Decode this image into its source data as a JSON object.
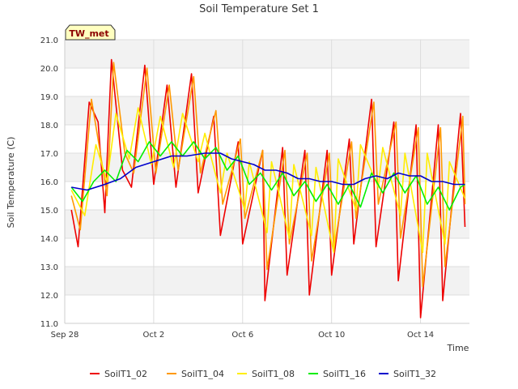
{
  "chart_data": {
    "type": "line",
    "title": "Soil Temperature Set 1",
    "xlabel": "Time",
    "ylabel": "Soil Temperature (C)",
    "ylim": [
      11.0,
      21.0
    ],
    "yticks": [
      11.0,
      12.0,
      13.0,
      14.0,
      15.0,
      16.0,
      17.0,
      18.0,
      19.0,
      20.0,
      21.0
    ],
    "ytick_labels": [
      "11.0",
      "12.0",
      "13.0",
      "14.0",
      "15.0",
      "16.0",
      "17.0",
      "18.0",
      "19.0",
      "20.0",
      "21.0"
    ],
    "xlim_days": [
      0,
      18.2
    ],
    "xticks": [
      0,
      4,
      8,
      12,
      16
    ],
    "xtick_labels": [
      "Sep 28",
      "Oct 2",
      "Oct 6",
      "Oct 10",
      "Oct 14"
    ],
    "grid": true,
    "legend_position": "bottom",
    "badge": "TW_met",
    "badge_color": "#ffffc0",
    "series": [
      {
        "name": "SoilT1_02",
        "color": "#ee0000",
        "x": [
          0.3,
          0.6,
          1.1,
          1.5,
          1.8,
          2.1,
          2.6,
          3.0,
          3.6,
          4.0,
          4.6,
          5.0,
          5.7,
          6.0,
          6.7,
          7.0,
          7.8,
          8.0,
          8.9,
          9.0,
          9.8,
          10.0,
          10.8,
          11.0,
          11.8,
          12.0,
          12.8,
          13.0,
          13.8,
          14.0,
          14.8,
          15.0,
          15.8,
          16.0,
          16.8,
          17.0,
          17.8,
          18.0
        ],
        "y": [
          15.0,
          13.7,
          18.8,
          18.1,
          14.9,
          20.3,
          16.4,
          15.8,
          20.1,
          15.9,
          19.4,
          15.8,
          19.8,
          15.6,
          18.3,
          14.1,
          17.4,
          13.8,
          17.1,
          11.8,
          17.2,
          12.7,
          17.1,
          12.0,
          17.1,
          12.7,
          17.5,
          13.8,
          18.9,
          13.7,
          18.1,
          12.5,
          18.0,
          11.2,
          18.0,
          11.8,
          18.4,
          14.4
        ]
      },
      {
        "name": "SoilT1_04",
        "color": "#ff9900",
        "x": [
          0.3,
          0.7,
          1.2,
          1.6,
          1.9,
          2.2,
          2.7,
          3.1,
          3.7,
          4.1,
          4.7,
          5.1,
          5.8,
          6.1,
          6.8,
          7.1,
          7.9,
          8.1,
          8.9,
          9.1,
          9.9,
          10.1,
          10.9,
          11.1,
          11.9,
          12.1,
          12.9,
          13.1,
          13.9,
          14.1,
          14.9,
          15.1,
          15.9,
          16.1,
          16.9,
          17.1,
          17.9,
          18.0
        ],
        "y": [
          15.5,
          14.3,
          18.9,
          17.0,
          15.5,
          20.2,
          17.0,
          16.3,
          20.0,
          16.3,
          19.4,
          16.4,
          19.7,
          16.3,
          18.5,
          15.2,
          17.5,
          14.7,
          17.1,
          12.9,
          17.1,
          13.8,
          17.0,
          13.2,
          17.0,
          13.6,
          17.4,
          14.7,
          18.8,
          15.2,
          18.1,
          14.0,
          17.9,
          12.3,
          17.9,
          13.0,
          18.3,
          15.2
        ]
      },
      {
        "name": "SoilT1_08",
        "color": "#ffee00",
        "x": [
          0.3,
          0.9,
          1.4,
          1.9,
          2.3,
          2.9,
          3.3,
          3.9,
          4.3,
          4.9,
          5.3,
          6.0,
          6.3,
          7.0,
          7.3,
          8.1,
          8.3,
          9.1,
          9.3,
          10.1,
          10.3,
          11.1,
          11.3,
          12.1,
          12.3,
          13.1,
          13.3,
          14.1,
          14.3,
          15.1,
          15.3,
          16.1,
          16.3,
          17.1,
          17.3,
          18.0
        ],
        "y": [
          15.7,
          14.8,
          17.3,
          16.0,
          18.4,
          16.8,
          18.6,
          16.6,
          18.3,
          16.5,
          18.4,
          16.7,
          17.7,
          15.6,
          17.0,
          15.0,
          16.7,
          14.2,
          16.7,
          14.0,
          16.6,
          14.1,
          16.5,
          13.5,
          16.8,
          15.0,
          17.3,
          15.8,
          17.2,
          14.8,
          17.0,
          13.5,
          17.0,
          13.8,
          16.7,
          15.4
        ]
      },
      {
        "name": "SoilT1_16",
        "color": "#00ee00",
        "x": [
          0.3,
          0.8,
          1.3,
          1.8,
          2.3,
          2.8,
          3.3,
          3.8,
          4.3,
          4.8,
          5.3,
          5.8,
          6.3,
          6.8,
          7.3,
          7.8,
          8.3,
          8.8,
          9.3,
          9.8,
          10.3,
          10.8,
          11.3,
          11.8,
          12.3,
          12.8,
          13.3,
          13.8,
          14.3,
          14.8,
          15.3,
          15.8,
          16.3,
          16.8,
          17.3,
          17.8,
          18.0
        ],
        "y": [
          15.8,
          15.3,
          16.0,
          16.4,
          16.0,
          17.1,
          16.7,
          17.4,
          16.9,
          17.4,
          16.9,
          17.4,
          16.8,
          17.2,
          16.4,
          16.9,
          15.9,
          16.3,
          15.7,
          16.3,
          15.5,
          16.0,
          15.3,
          15.9,
          15.2,
          15.9,
          15.1,
          16.3,
          15.6,
          16.3,
          15.6,
          16.2,
          15.2,
          15.8,
          15.0,
          15.8,
          15.9
        ]
      },
      {
        "name": "SoilT1_32",
        "color": "#0000cc",
        "x": [
          0.3,
          1.0,
          1.8,
          2.5,
          3.2,
          4.0,
          4.8,
          5.5,
          6.3,
          7.0,
          7.5,
          8.0,
          8.5,
          9.0,
          9.5,
          10.0,
          10.5,
          11.0,
          11.5,
          12.0,
          12.5,
          13.0,
          13.5,
          14.0,
          14.5,
          15.0,
          15.5,
          16.0,
          16.5,
          17.0,
          17.5,
          18.0
        ],
        "y": [
          15.8,
          15.7,
          15.9,
          16.1,
          16.5,
          16.7,
          16.9,
          16.9,
          17.0,
          17.0,
          16.8,
          16.7,
          16.6,
          16.4,
          16.4,
          16.3,
          16.1,
          16.1,
          16.0,
          16.0,
          15.9,
          15.9,
          16.1,
          16.2,
          16.1,
          16.3,
          16.2,
          16.2,
          16.0,
          16.0,
          15.9,
          15.9
        ]
      }
    ]
  }
}
